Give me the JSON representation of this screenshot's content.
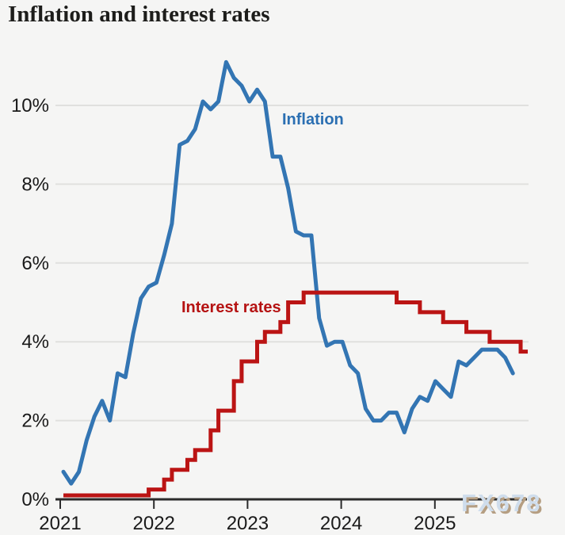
{
  "title": "Inflation and interest rates",
  "watermark": "FX678",
  "colors": {
    "background": "#f5f5f4",
    "gridline": "#e0e0de",
    "axis": "#2b2b2b",
    "title_text": "#1d1d1b",
    "tick_text": "#1a1a1a",
    "inflation_line": "#3375b3",
    "rates_line": "#bb1414",
    "inflation_label": "#2b6fb2",
    "rates_label": "#b51212",
    "watermark_text": "#cfddec",
    "watermark_shadow": "#b59e82"
  },
  "chart_data": {
    "type": "line",
    "title": "Inflation and interest rates",
    "x_start": "2021-01",
    "x_interval": "monthly",
    "x_tick_labels": [
      "2021",
      "2022",
      "2023",
      "2024",
      "2025"
    ],
    "x_tick_month_index": [
      0,
      12,
      24,
      36,
      48
    ],
    "y_tick_labels": [
      "0%",
      "2%",
      "4%",
      "6%",
      "8%",
      "10%"
    ],
    "y_tick_values": [
      0,
      2,
      4,
      6,
      8,
      10
    ],
    "ylim": [
      0,
      11.6
    ],
    "grid": true,
    "legend_position": "inline-labels",
    "series": [
      {
        "name": "Inflation",
        "style": "line",
        "color": "#3375b3",
        "values": [
          0.7,
          0.4,
          0.7,
          1.5,
          2.1,
          2.5,
          2.0,
          3.2,
          3.1,
          4.2,
          5.1,
          5.4,
          5.5,
          6.2,
          7.0,
          9.0,
          9.1,
          9.4,
          10.1,
          9.9,
          10.1,
          11.1,
          10.7,
          10.5,
          10.1,
          10.4,
          10.1,
          8.7,
          8.7,
          7.9,
          6.8,
          6.7,
          6.7,
          4.6,
          3.9,
          4.0,
          4.0,
          3.4,
          3.2,
          2.3,
          2.0,
          2.0,
          2.2,
          2.2,
          1.7,
          2.3,
          2.6,
          2.5,
          3.0,
          2.8,
          2.6,
          3.5,
          3.4,
          3.6,
          3.8,
          3.8,
          3.8,
          3.6,
          3.2
        ]
      },
      {
        "name": "Interest rates",
        "style": "step",
        "color": "#bb1414",
        "values": [
          0.1,
          0.1,
          0.1,
          0.1,
          0.1,
          0.1,
          0.1,
          0.1,
          0.1,
          0.1,
          0.1,
          0.25,
          0.25,
          0.5,
          0.75,
          0.75,
          1.0,
          1.25,
          1.25,
          1.75,
          2.25,
          2.25,
          3.0,
          3.5,
          3.5,
          4.0,
          4.25,
          4.25,
          4.5,
          5.0,
          5.0,
          5.25,
          5.25,
          5.25,
          5.25,
          5.25,
          5.25,
          5.25,
          5.25,
          5.25,
          5.25,
          5.25,
          5.25,
          5.0,
          5.0,
          5.0,
          4.75,
          4.75,
          4.75,
          4.5,
          4.5,
          4.5,
          4.25,
          4.25,
          4.25,
          4.0,
          4.0,
          4.0,
          4.0,
          3.75
        ]
      }
    ]
  }
}
